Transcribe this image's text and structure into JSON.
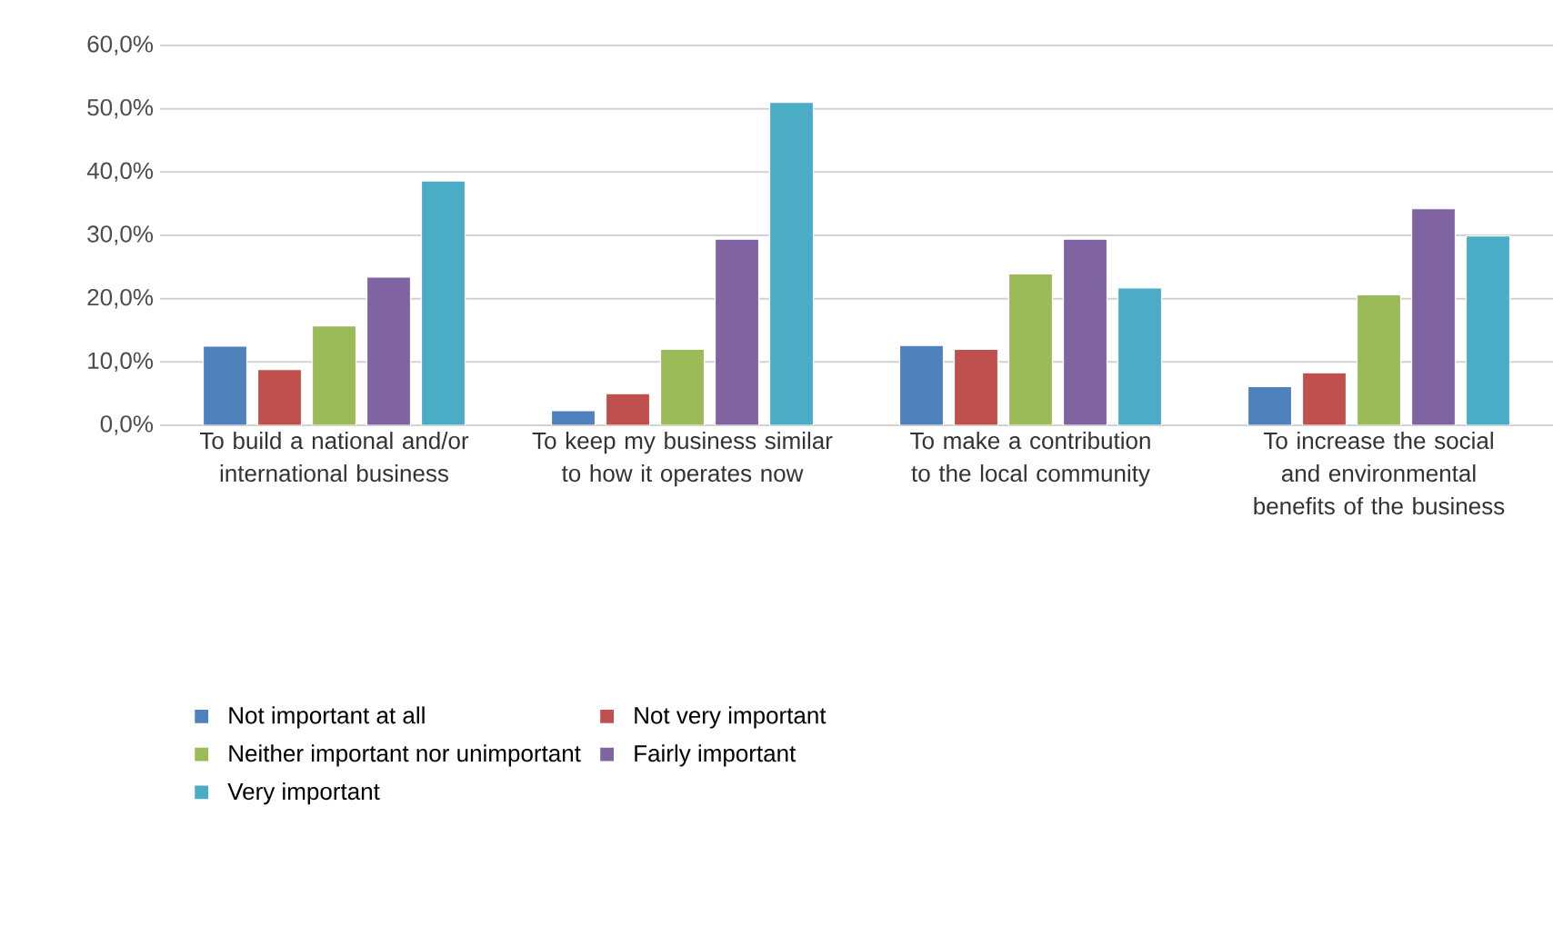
{
  "chart_data": {
    "type": "bar",
    "categories": [
      "To build a national and/or international business",
      "To keep my business similar to how it operates now",
      "To make a contribution to the local community",
      "To increase the social and environmental benefits of the business"
    ],
    "series": [
      {
        "name": "Not important at all",
        "color": "#4f81bd",
        "values": [
          12.5,
          2.3,
          12.6,
          6.1
        ]
      },
      {
        "name": "Not very important",
        "color": "#c0504d",
        "values": [
          8.8,
          5.0,
          12.0,
          8.3
        ]
      },
      {
        "name": "Neither important nor unimportant",
        "color": "#9bbb59",
        "values": [
          15.7,
          12.0,
          23.9,
          20.6
        ]
      },
      {
        "name": "Fairly important",
        "color": "#8064a2",
        "values": [
          23.4,
          29.4,
          29.4,
          34.2
        ]
      },
      {
        "name": "Very important",
        "color": "#4bacc6",
        "values": [
          38.6,
          51.0,
          21.7,
          29.9
        ]
      }
    ],
    "ylim": [
      0,
      60
    ],
    "yticks": [
      {
        "value": 0,
        "label": "0,0%"
      },
      {
        "value": 10,
        "label": "10,0%"
      },
      {
        "value": 20,
        "label": "20,0%"
      },
      {
        "value": 30,
        "label": "30,0%"
      },
      {
        "value": 40,
        "label": "40,0%"
      },
      {
        "value": 50,
        "label": "50,0%"
      },
      {
        "value": 60,
        "label": "60,0%"
      }
    ],
    "grid": "y",
    "legend": "bottom"
  }
}
